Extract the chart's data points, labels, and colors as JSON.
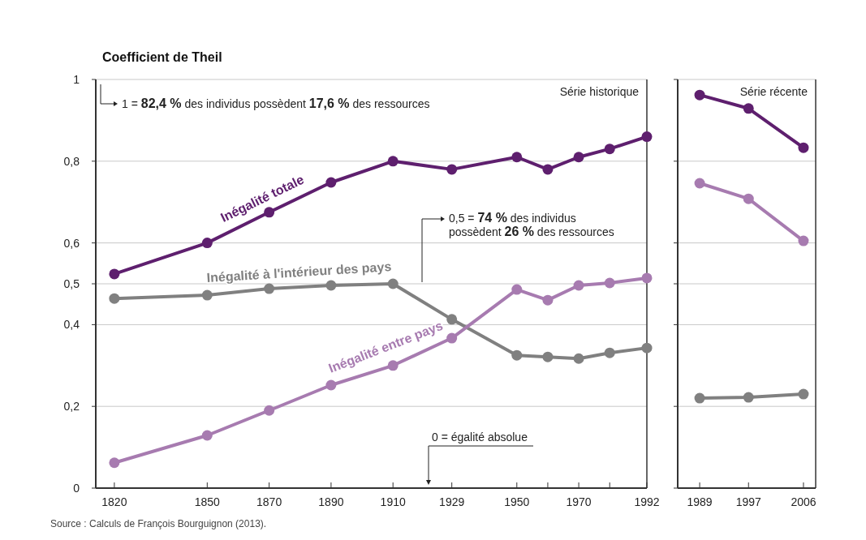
{
  "chart_data": [
    {
      "type": "line",
      "ylabel": "Coefficient de Theil",
      "subtitle": "Série historique",
      "x": [
        1820,
        1850,
        1870,
        1890,
        1910,
        1929,
        1950,
        1960,
        1970,
        1980,
        1992
      ],
      "xlim": [
        1814,
        1992
      ],
      "xticks": [
        1820,
        1850,
        1870,
        1890,
        1910,
        1929,
        1950,
        {
          "value": 1960,
          "label": null
        },
        1970,
        {
          "value": 1980,
          "label": null
        },
        1992
      ],
      "ylim": [
        0,
        1
      ],
      "yticks": [
        0,
        {
          "value": 0.2,
          "label": "0,2"
        },
        {
          "value": 0.4,
          "label": "0,4"
        },
        {
          "value": 0.5,
          "label": "0,5"
        },
        {
          "value": 0.6,
          "label": "0,6"
        },
        {
          "value": 0.8,
          "label": "0,8"
        },
        1
      ],
      "grid": "y",
      "marker": "circle",
      "series": [
        {
          "name": "Inégalité totale",
          "color": "#5e1f6e",
          "values": [
            0.524,
            0.6,
            0.675,
            0.748,
            0.8,
            0.78,
            0.81,
            0.78,
            0.81,
            0.83,
            0.86
          ]
        },
        {
          "name": "Inégalité à l'intérieur des pays",
          "color": "#808080",
          "values": [
            0.464,
            0.472,
            0.488,
            0.496,
            0.5,
            0.413,
            0.325,
            0.321,
            0.317,
            0.331,
            0.343
          ]
        },
        {
          "name": "Inégalité entre pays",
          "color": "#a77bb0",
          "values": [
            0.062,
            0.129,
            0.19,
            0.252,
            0.3,
            0.367,
            0.486,
            0.46,
            0.496,
            0.502,
            0.514
          ]
        }
      ],
      "annotations": [
        "1 = 82,4 % des individus possèdent 17,6 % des ressources",
        "0,5 = 74 % des individus possèdent 26 % des ressources",
        "0 = égalité absolue",
        "Source : Calculs de François Bourguignon (2013)."
      ]
    },
    {
      "type": "line",
      "subtitle": "Série récente",
      "x": [
        1989,
        1997,
        2006
      ],
      "xlim": [
        1985.4,
        2008
      ],
      "xticks": [
        1989,
        1997,
        2006
      ],
      "ylim": [
        0,
        1
      ],
      "yticks": [
        0,
        0.2,
        0.4,
        0.5,
        0.6,
        0.8,
        1
      ],
      "tick_labels": "x",
      "grid": "y",
      "marker": "circle",
      "series": [
        {
          "color": "#5e1f6e",
          "values": [
            0.962,
            0.929,
            0.833
          ]
        },
        {
          "color": "#a77bb0",
          "values": [
            0.746,
            0.708,
            0.605
          ]
        },
        {
          "color": "#808080",
          "values": [
            0.22,
            0.222,
            0.23
          ]
        }
      ]
    }
  ]
}
